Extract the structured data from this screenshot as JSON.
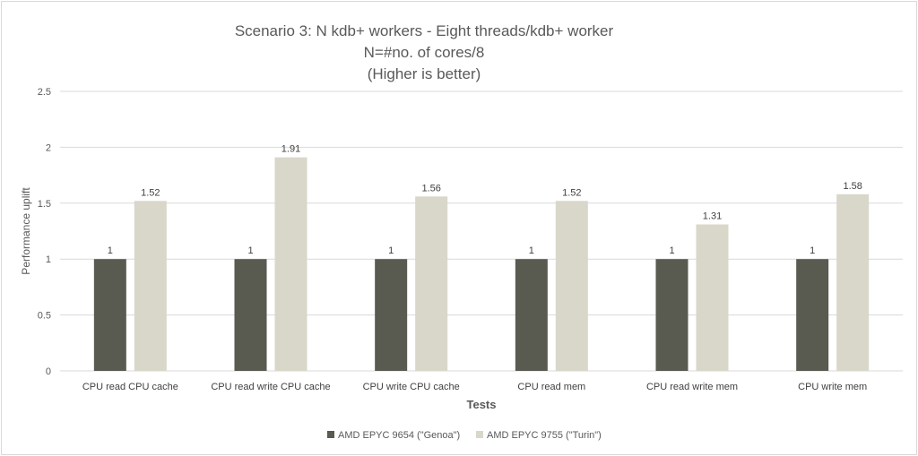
{
  "chart_data": {
    "type": "bar",
    "title_lines": [
      "Scenario 3: N kdb+ workers - Eight threads/kdb+ worker",
      "N=#no. of cores/8",
      "(Higher is better)"
    ],
    "xlabel": "Tests",
    "ylabel": "Performance uplift",
    "ylim": [
      0,
      2.5
    ],
    "yticks": [
      "0",
      "0.5",
      "1",
      "1.5",
      "2",
      "2.5"
    ],
    "grid": true,
    "legend_position": "bottom",
    "categories": [
      "CPU read CPU cache",
      "CPU read write CPU cache",
      "CPU write CPU cache",
      "CPU read mem",
      "CPU read write mem",
      "CPU write mem"
    ],
    "series": [
      {
        "name": "AMD EPYC 9654 (\"Genoa\")",
        "color": "#595a50",
        "values": [
          1,
          1,
          1,
          1,
          1,
          1
        ],
        "labels": [
          "1",
          "1",
          "1",
          "1",
          "1",
          "1"
        ]
      },
      {
        "name": "AMD EPYC 9755 (\"Turin\")",
        "color": "#d8d7ca",
        "values": [
          1.52,
          1.91,
          1.56,
          1.52,
          1.31,
          1.58
        ],
        "labels": [
          "1.52",
          "1.91",
          "1.56",
          "1.52",
          "1.31",
          "1.58"
        ]
      }
    ]
  }
}
